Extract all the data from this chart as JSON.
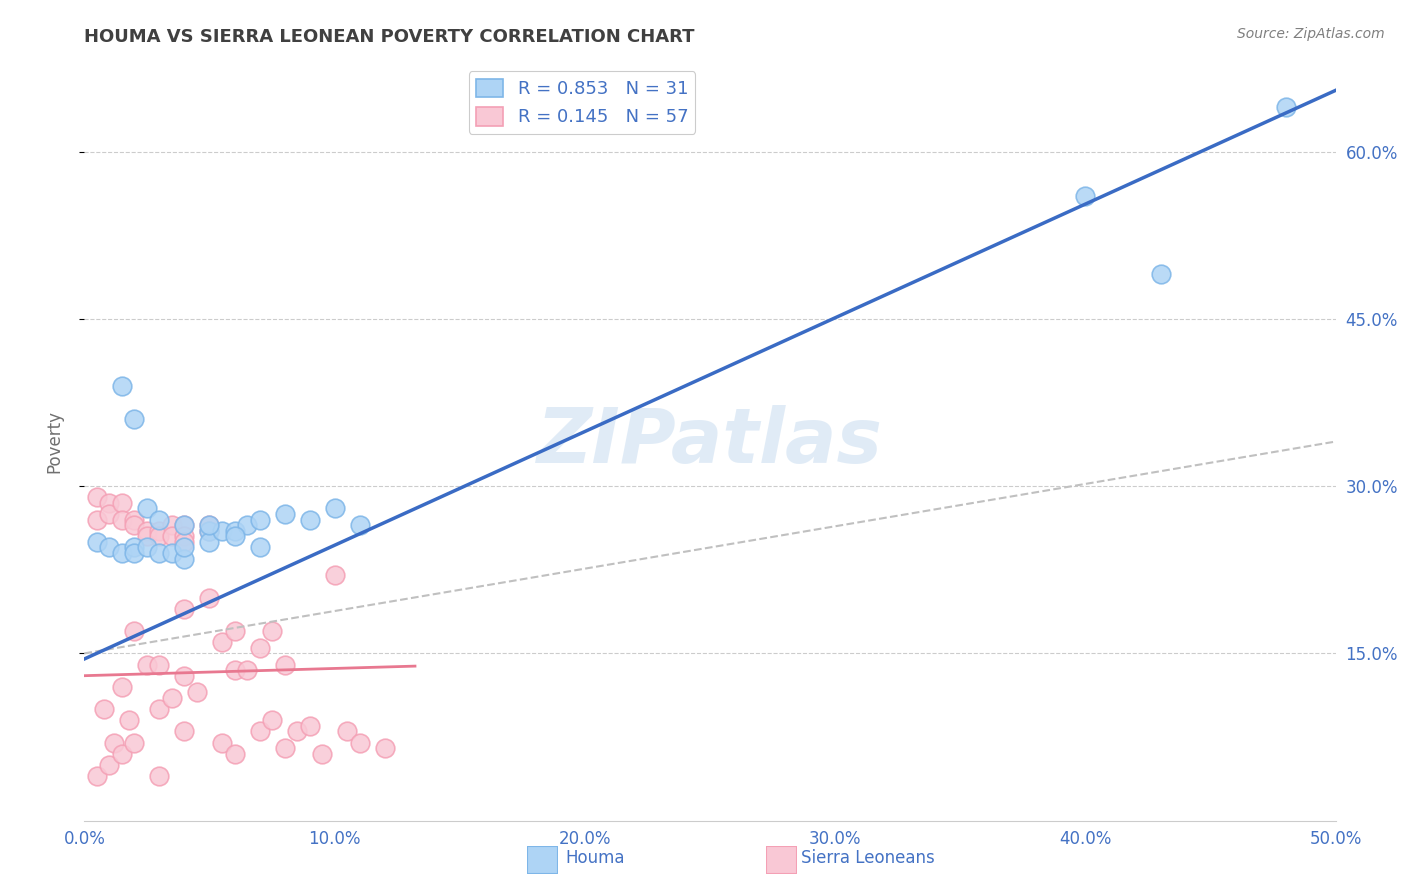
{
  "title": "HOUMA VS SIERRA LEONEAN POVERTY CORRELATION CHART",
  "source": "Source: ZipAtlas.com",
  "ylabel": "Poverty",
  "xlim": [
    0.0,
    0.5
  ],
  "ylim": [
    0.0,
    0.68
  ],
  "xticks": [
    0.0,
    0.1,
    0.2,
    0.3,
    0.4,
    0.5
  ],
  "xtick_labels": [
    "0.0%",
    "10.0%",
    "20.0%",
    "30.0%",
    "40.0%",
    "50.0%"
  ],
  "yticks": [
    0.15,
    0.3,
    0.45,
    0.6
  ],
  "ytick_labels": [
    "15.0%",
    "30.0%",
    "45.0%",
    "60.0%"
  ],
  "houma_color": "#7EB6E8",
  "houma_fill": "#AED4F5",
  "sierra_color": "#F4A0B5",
  "sierra_fill": "#F9C8D5",
  "houma_R": 0.853,
  "houma_N": 31,
  "sierra_R": 0.145,
  "sierra_N": 57,
  "houma_line_color": "#3A6BC4",
  "sierra_line_color": "#E87890",
  "sierra_dashed_color": "#C0C0C0",
  "grid_color": "#CCCCCC",
  "title_color": "#404040",
  "label_color": "#4472C4",
  "source_color": "#808080",
  "background_color": "#FFFFFF",
  "houma_line_intercept": 0.145,
  "houma_line_slope": 1.02,
  "sierra_solid_intercept": 0.13,
  "sierra_solid_slope": 0.065,
  "sierra_dash_intercept": 0.15,
  "sierra_dash_slope": 0.38,
  "houma_x": [
    0.005,
    0.01,
    0.015,
    0.02,
    0.02,
    0.025,
    0.03,
    0.035,
    0.04,
    0.04,
    0.05,
    0.05,
    0.055,
    0.06,
    0.065,
    0.07,
    0.08,
    0.09,
    0.1,
    0.11,
    0.015,
    0.02,
    0.025,
    0.03,
    0.04,
    0.05,
    0.06,
    0.07,
    0.4,
    0.43,
    0.48
  ],
  "houma_y": [
    0.25,
    0.245,
    0.24,
    0.245,
    0.24,
    0.245,
    0.24,
    0.24,
    0.235,
    0.245,
    0.26,
    0.25,
    0.26,
    0.26,
    0.265,
    0.27,
    0.275,
    0.27,
    0.28,
    0.265,
    0.39,
    0.36,
    0.28,
    0.27,
    0.265,
    0.265,
    0.255,
    0.245,
    0.56,
    0.49,
    0.64
  ],
  "sierra_x": [
    0.005,
    0.005,
    0.005,
    0.008,
    0.01,
    0.01,
    0.01,
    0.012,
    0.015,
    0.015,
    0.015,
    0.015,
    0.018,
    0.02,
    0.02,
    0.02,
    0.02,
    0.025,
    0.025,
    0.025,
    0.03,
    0.03,
    0.03,
    0.03,
    0.03,
    0.035,
    0.035,
    0.035,
    0.04,
    0.04,
    0.04,
    0.04,
    0.04,
    0.04,
    0.045,
    0.05,
    0.05,
    0.05,
    0.055,
    0.055,
    0.06,
    0.06,
    0.06,
    0.065,
    0.07,
    0.07,
    0.075,
    0.075,
    0.08,
    0.08,
    0.085,
    0.09,
    0.095,
    0.1,
    0.105,
    0.11,
    0.12
  ],
  "sierra_y": [
    0.29,
    0.27,
    0.04,
    0.1,
    0.285,
    0.275,
    0.05,
    0.07,
    0.285,
    0.27,
    0.12,
    0.06,
    0.09,
    0.27,
    0.265,
    0.17,
    0.07,
    0.26,
    0.255,
    0.14,
    0.26,
    0.255,
    0.14,
    0.1,
    0.04,
    0.265,
    0.255,
    0.11,
    0.265,
    0.255,
    0.25,
    0.19,
    0.13,
    0.08,
    0.115,
    0.265,
    0.26,
    0.2,
    0.16,
    0.07,
    0.17,
    0.135,
    0.06,
    0.135,
    0.155,
    0.08,
    0.17,
    0.09,
    0.14,
    0.065,
    0.08,
    0.085,
    0.06,
    0.22,
    0.08,
    0.07,
    0.065
  ]
}
